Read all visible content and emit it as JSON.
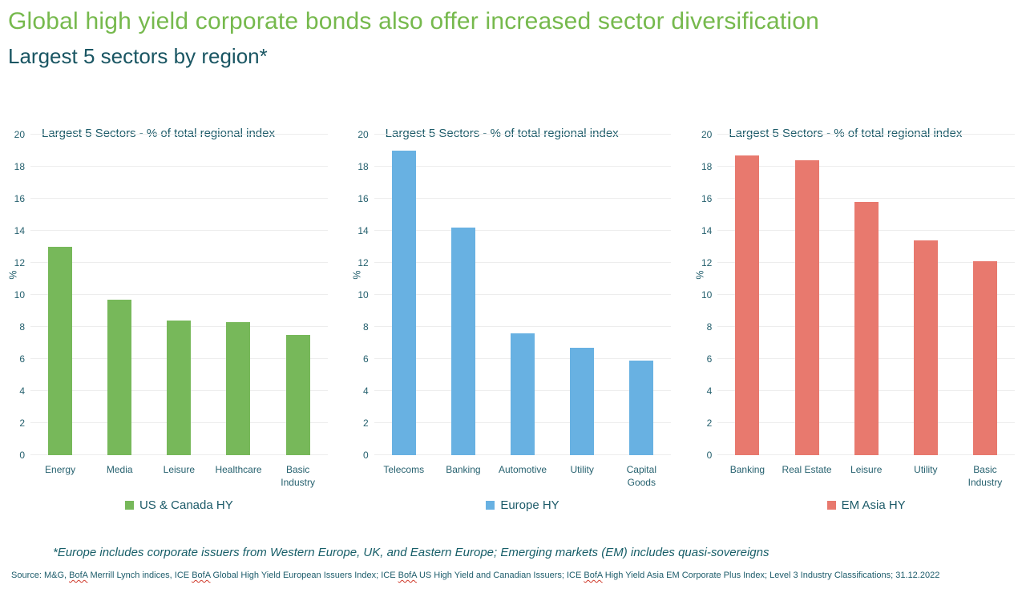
{
  "header": {
    "title": "Global high yield corporate bonds also offer increased sector diversification",
    "subtitle": "Largest 5 sectors by region*"
  },
  "chart_data": [
    {
      "type": "bar",
      "title": "Largest 5 Sectors - % of total regional index",
      "ylabel": "%",
      "ylim": [
        0,
        20
      ],
      "ytick_step": 2,
      "grid": true,
      "legend": "US & Canada HY",
      "legend_position": "bottom",
      "color": "#77B85A",
      "categories": [
        "Energy",
        "Media",
        "Leisure",
        "Healthcare",
        "Basic Industry"
      ],
      "values": [
        13.0,
        9.7,
        8.4,
        8.3,
        7.5
      ]
    },
    {
      "type": "bar",
      "title": "Largest 5 Sectors - % of total regional index",
      "ylabel": "%",
      "ylim": [
        0,
        20
      ],
      "ytick_step": 2,
      "grid": true,
      "legend": "Europe HY",
      "legend_position": "bottom",
      "color": "#68B1E2",
      "categories": [
        "Telecoms",
        "Banking",
        "Automotive",
        "Utility",
        "Capital Goods"
      ],
      "values": [
        19.0,
        14.2,
        7.6,
        6.7,
        5.9
      ]
    },
    {
      "type": "bar",
      "title": "Largest 5 Sectors - % of total regional index",
      "ylabel": "%",
      "ylim": [
        0,
        20
      ],
      "ytick_step": 2,
      "grid": true,
      "legend": "EM Asia HY",
      "legend_position": "bottom",
      "color": "#E8796E",
      "categories": [
        "Banking",
        "Real Estate",
        "Leisure",
        "Utility",
        "Basic Industry"
      ],
      "values": [
        18.7,
        18.4,
        15.8,
        13.4,
        12.1
      ]
    }
  ],
  "footnote": "*Europe includes corporate issuers from Western Europe, UK, and Eastern Europe; Emerging markets (EM) includes quasi-sovereigns",
  "source": {
    "segments": [
      {
        "text": "Source: M&G, "
      },
      {
        "text": "BofA",
        "flagged": true
      },
      {
        "text": " Merrill Lynch indices, ICE "
      },
      {
        "text": "BofA",
        "flagged": true
      },
      {
        "text": " Global High Yield European Issuers Index; ICE "
      },
      {
        "text": "BofA",
        "flagged": true
      },
      {
        "text": " US High Yield and Canadian Issuers; ICE "
      },
      {
        "text": "BofA",
        "flagged": true
      },
      {
        "text": " High Yield Asia EM Corporate Plus Index; Level 3 Industry Classifications; 31.12.2022"
      }
    ]
  },
  "colors": {
    "title_green": "#76B94D",
    "heading_teal": "#1A5663",
    "text_teal": "#1D5B69",
    "bar_green": "#77B85A",
    "bar_blue": "#68B1E2",
    "bar_salmon": "#E8796E",
    "gridline": "#EDEDED",
    "spellcheck_red": "#D03A2B"
  }
}
